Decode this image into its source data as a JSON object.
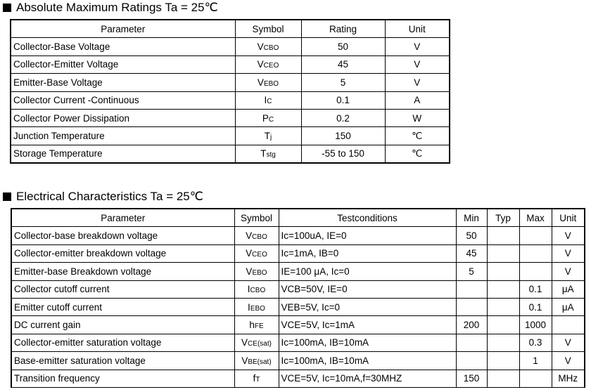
{
  "section1": {
    "title": "Absolute Maximum Ratings Ta = 25℃",
    "headers": [
      "Parameter",
      "Symbol",
      "Rating",
      "Unit"
    ],
    "rows": [
      {
        "parameter": "Collector-Base Voltage",
        "sym_main": "V",
        "sym_sub": "CBO",
        "rating": "50",
        "unit": "V"
      },
      {
        "parameter": "Collector-Emitter Voltage",
        "sym_main": "V",
        "sym_sub": "CEO",
        "rating": "45",
        "unit": "V"
      },
      {
        "parameter": "Emitter-Base Voltage",
        "sym_main": "V",
        "sym_sub": "EBO",
        "rating": "5",
        "unit": "V"
      },
      {
        "parameter": "Collector Current -Continuous",
        "sym_main": "I",
        "sym_sub": "C",
        "rating": "0.1",
        "unit": "A"
      },
      {
        "parameter": "Collector Power Dissipation",
        "sym_main": "P",
        "sym_sub": "C",
        "rating": "0.2",
        "unit": "W"
      },
      {
        "parameter": "Junction Temperature",
        "sym_main": "T",
        "sym_sub": "j",
        "rating": "150",
        "unit": "℃"
      },
      {
        "parameter": "Storage Temperature",
        "sym_main": "T",
        "sym_sub": "stg",
        "rating": "-55 to 150",
        "unit": "℃"
      }
    ]
  },
  "section2": {
    "title": "Electrical Characteristics Ta = 25℃",
    "headers": [
      "Parameter",
      "Symbol",
      "Testconditions",
      "Min",
      "Typ",
      "Max",
      "Unit"
    ],
    "rows": [
      {
        "parameter": "Collector-base breakdown voltage",
        "sym_main": "V",
        "sym_sub": "CBO",
        "test": "Ic=100uA, IE=0",
        "min": "50",
        "typ": "",
        "max": "",
        "unit": "V"
      },
      {
        "parameter": "Collector-emitter breakdown voltage",
        "sym_main": "V",
        "sym_sub": "CEO",
        "test": "Ic=1mA, IB=0",
        "min": "45",
        "typ": "",
        "max": "",
        "unit": "V"
      },
      {
        "parameter": "Emitter-base Breakdown voltage",
        "sym_main": "V",
        "sym_sub": "EBO",
        "test": "IE=100 μA, Ic=0",
        "min": "5",
        "typ": "",
        "max": "",
        "unit": "V"
      },
      {
        "parameter": "Collector cutoff current",
        "sym_main": "I",
        "sym_sub": "CBO",
        "test": "VCB=50V, IE=0",
        "min": "",
        "typ": "",
        "max": "0.1",
        "unit": "μA"
      },
      {
        "parameter": "Emitter cutoff current",
        "sym_main": "I",
        "sym_sub": "EBO",
        "test": "VEB=5V, Ic=0",
        "min": "",
        "typ": "",
        "max": "0.1",
        "unit": "μA"
      },
      {
        "parameter": "DC current gain",
        "sym_main": "h",
        "sym_sub": "FE",
        "test": "VCE=5V, Ic=1mA",
        "min": "200",
        "typ": "",
        "max": "1000",
        "unit": ""
      },
      {
        "parameter": "Collector-emitter saturation voltage",
        "sym_main": "V",
        "sym_sub": "CE(sat)",
        "test": "Ic=100mA, IB=10mA",
        "min": "",
        "typ": "",
        "max": "0.3",
        "unit": "V"
      },
      {
        "parameter": "Base-emitter saturation voltage",
        "sym_main": "V",
        "sym_sub": "BE(sat)",
        "test": "Ic=100mA, IB=10mA",
        "min": "",
        "typ": "",
        "max": "1",
        "unit": "V"
      },
      {
        "parameter": "Transition frequency",
        "sym_main": "f",
        "sym_sub": "T",
        "test": "VCE=5V, Ic=10mA,f=30MHZ",
        "min": "150",
        "typ": "",
        "max": "",
        "unit": "MHz"
      }
    ]
  }
}
